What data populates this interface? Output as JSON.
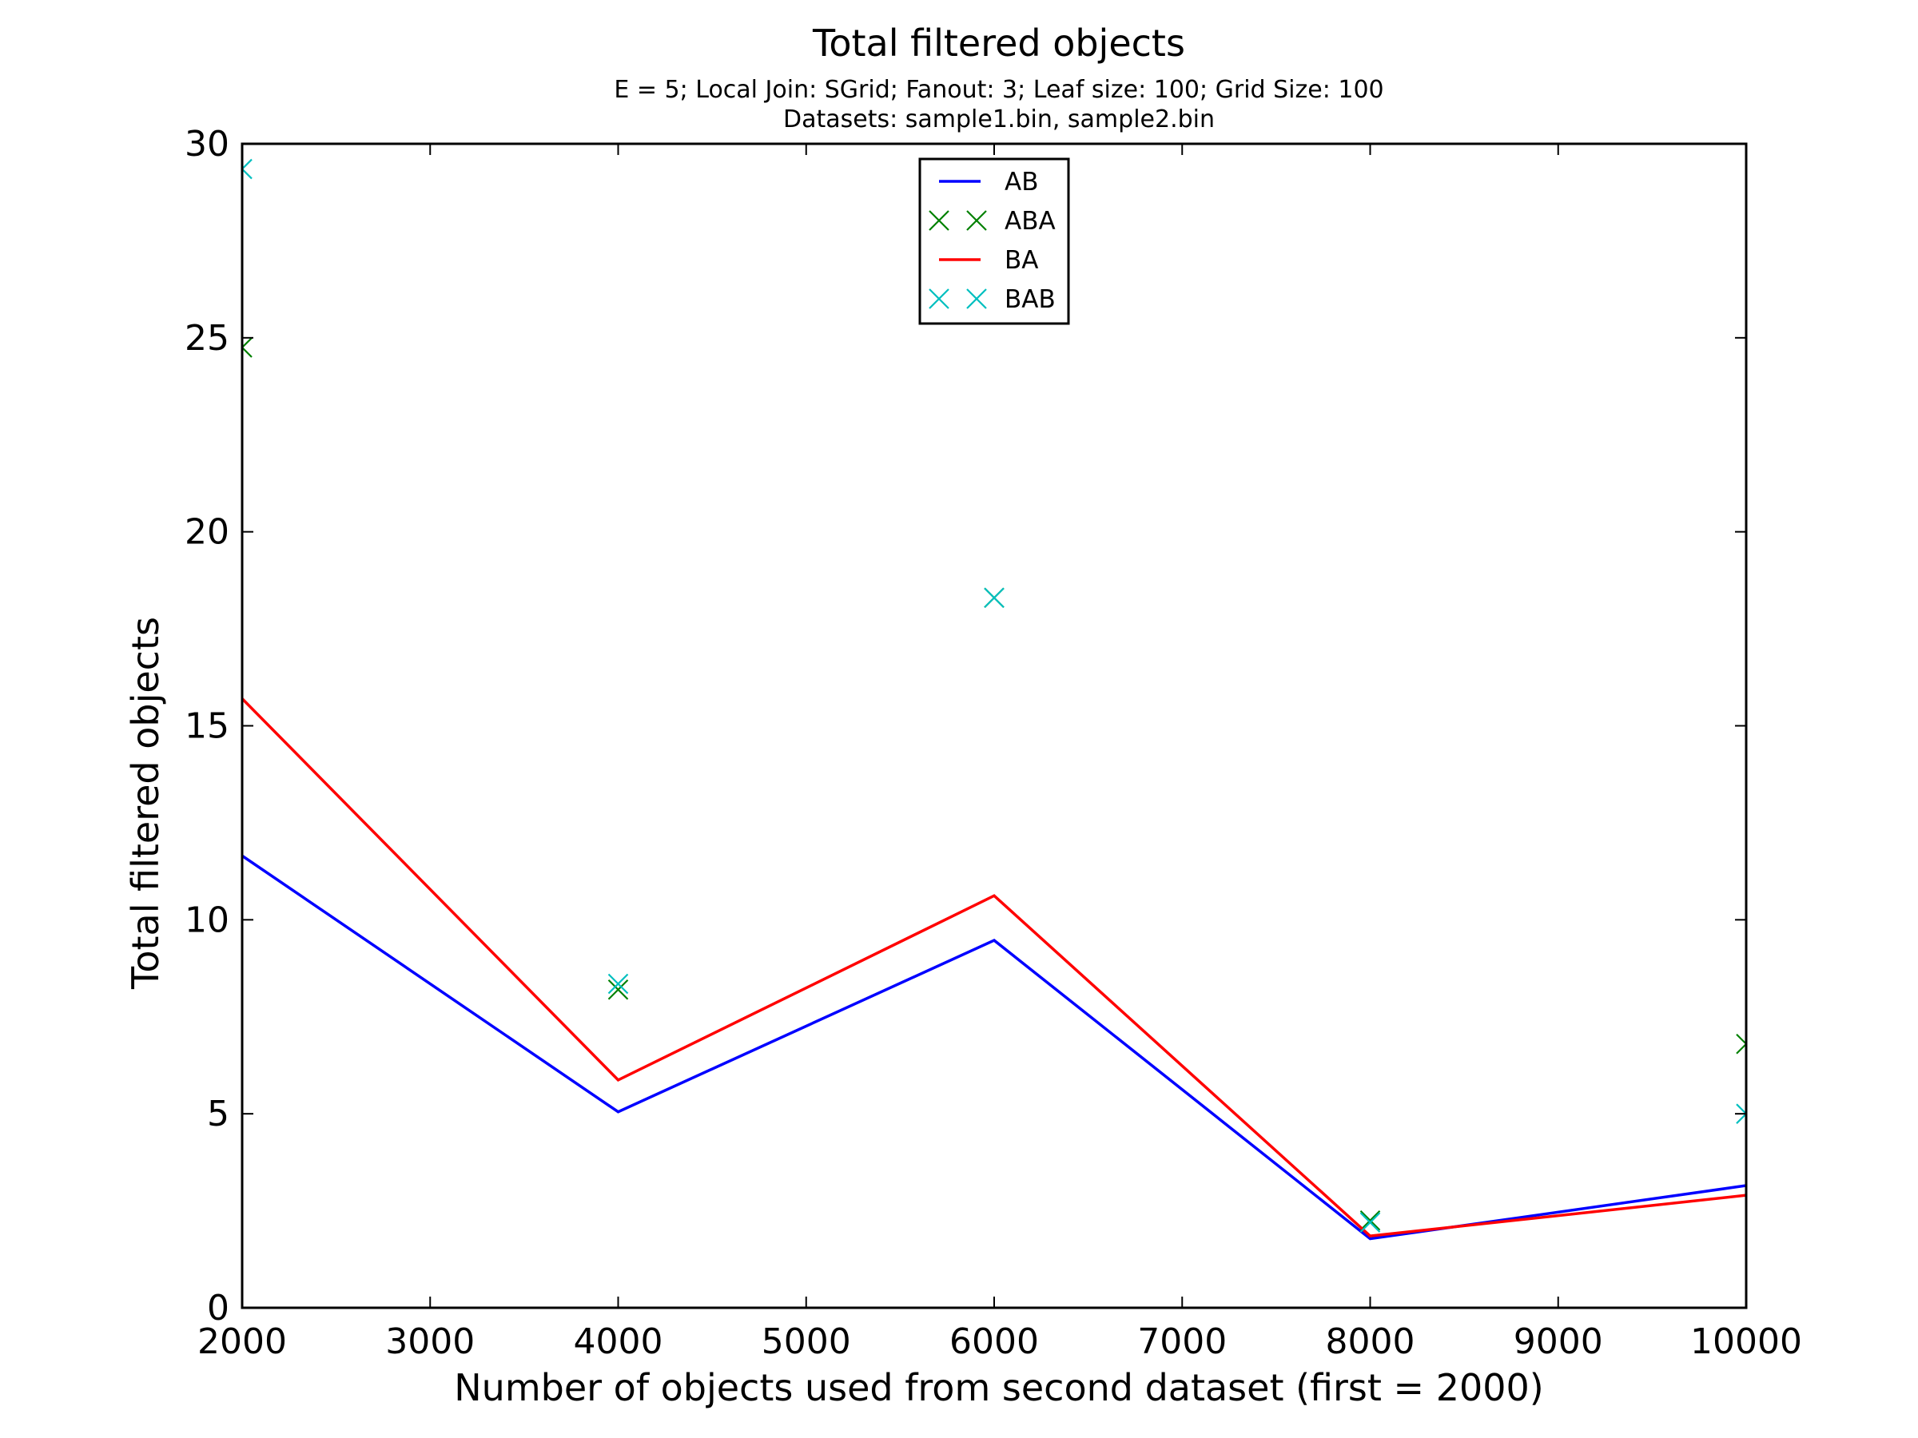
{
  "chart_data": {
    "type": "line",
    "title": "Total filtered objects",
    "subtitle_line1": "E = 5; Local Join: SGrid; Fanout: 3; Leaf size: 100; Grid Size: 100",
    "subtitle_line2": "Datasets: sample1.bin, sample2.bin",
    "xlabel": "Number of objects used from second dataset (first = 2000)",
    "ylabel": "Total filtered objects",
    "xlim": [
      2000,
      10000
    ],
    "ylim": [
      0,
      30
    ],
    "xticks": [
      2000,
      3000,
      4000,
      5000,
      6000,
      7000,
      8000,
      9000,
      10000
    ],
    "yticks": [
      0,
      5,
      10,
      15,
      20,
      25,
      30
    ],
    "x": [
      2000,
      4000,
      6000,
      8000,
      10000
    ],
    "series": [
      {
        "name": "AB",
        "style": "line",
        "color": "#0000ff",
        "values": [
          11.65,
          5.05,
          9.47,
          1.78,
          3.15
        ]
      },
      {
        "name": "ABA",
        "style": "x",
        "color": "#008000",
        "values": [
          24.75,
          8.2,
          18.3,
          2.25,
          6.8
        ]
      },
      {
        "name": "BA",
        "style": "line",
        "color": "#ff0000",
        "values": [
          15.7,
          5.87,
          10.62,
          1.85,
          2.9
        ]
      },
      {
        "name": "BAB",
        "style": "x",
        "color": "#00bfbf",
        "values": [
          29.35,
          8.35,
          18.3,
          2.2,
          5.0
        ]
      }
    ],
    "legend": {
      "position": "top-center",
      "entries": [
        "AB",
        "ABA",
        "BA",
        "BAB"
      ]
    },
    "grid": false
  }
}
